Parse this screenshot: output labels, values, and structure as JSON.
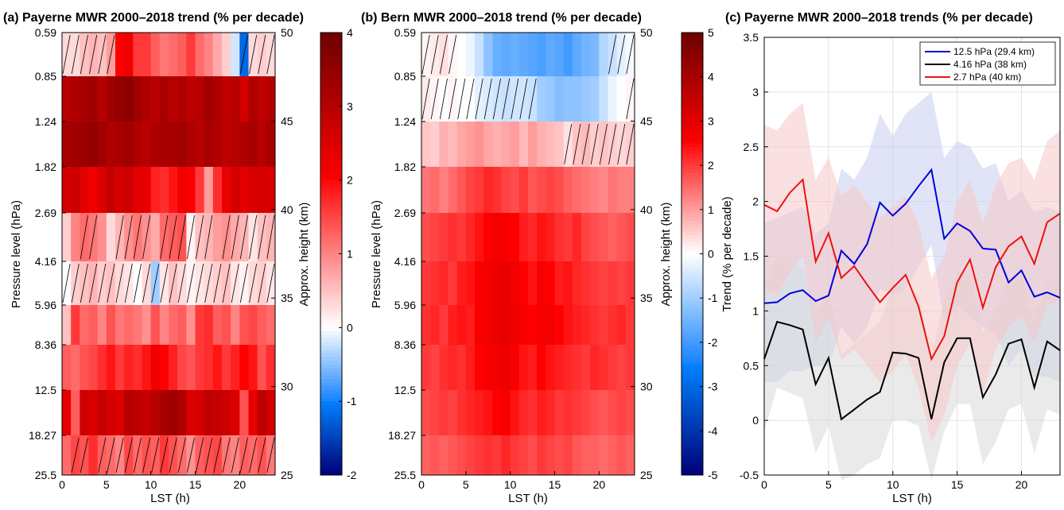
{
  "chart_data": [
    {
      "type": "heatmap",
      "title": "(a) Payerne MWR 2000–2018 trend (% per decade)",
      "xlabel": "LST (h)",
      "ylabel": "Pressure level (hPa)",
      "ylabel_right": "Approx. height (km)",
      "x_range": [
        0,
        24
      ],
      "x_ticks": [
        "0",
        "5",
        "10",
        "15",
        "20"
      ],
      "pressure_levels": [
        "0.59",
        "0.85",
        "1.24",
        "1.82",
        "2.69",
        "4.16",
        "5.96",
        "8.36",
        "12.5",
        "18.27",
        "25.5"
      ],
      "height_range_km": [
        25,
        50
      ],
      "height_ticks": [
        "25",
        "30",
        "35",
        "40",
        "45",
        "50"
      ],
      "colorbar_range": [
        -2,
        4
      ],
      "colorbar_ticks": [
        "-2",
        "-1",
        "0",
        "1",
        "2",
        "3",
        "4"
      ],
      "row_values": [
        [
          0.3,
          0.3,
          0.5,
          0.6,
          0.5,
          0.8,
          2.0,
          2.2,
          1.6,
          1.6,
          1.3,
          1.1,
          1.2,
          1.3,
          1.6,
          1.2,
          1.0,
          0.7,
          0.4,
          -0.2,
          -1.2,
          0.3,
          0.4,
          0.3
        ],
        [
          3.0,
          3.1,
          3.2,
          3.3,
          3.0,
          3.3,
          3.5,
          3.6,
          3.3,
          3.1,
          3.0,
          3.2,
          3.0,
          3.1,
          2.9,
          3.0,
          3.3,
          3.1,
          2.9,
          3.0,
          2.6,
          3.1,
          2.9,
          3.0
        ],
        [
          3.2,
          3.3,
          3.4,
          3.5,
          3.3,
          3.1,
          3.2,
          3.3,
          3.1,
          3.0,
          3.1,
          3.2,
          3.2,
          3.3,
          3.1,
          3.0,
          3.2,
          3.1,
          2.9,
          3.0,
          3.1,
          3.2,
          3.0,
          3.2
        ],
        [
          2.6,
          2.7,
          2.4,
          2.2,
          2.5,
          2.8,
          2.6,
          2.7,
          2.4,
          2.3,
          1.8,
          1.7,
          1.9,
          2.2,
          2.1,
          1.6,
          0.8,
          1.7,
          2.3,
          2.6,
          2.4,
          2.5,
          2.6,
          2.5
        ],
        [
          0.4,
          1.0,
          1.2,
          1.1,
          0.9,
          0.3,
          0.6,
          0.9,
          1.1,
          0.9,
          0.7,
          1.2,
          1.3,
          1.4,
          0.1,
          0.5,
          0.6,
          0.8,
          0.9,
          0.7,
          0.6,
          0.2,
          0.5,
          0.6
        ],
        [
          0.0,
          0.4,
          0.5,
          0.6,
          0.4,
          0.5,
          0.3,
          0.2,
          0.0,
          0.3,
          -0.4,
          0.2,
          0.5,
          0.3,
          0.1,
          0.2,
          0.3,
          0.4,
          0.5,
          0.2,
          0.1,
          0.3,
          0.4,
          0.2
        ],
        [
          0.5,
          1.6,
          1.2,
          1.3,
          1.0,
          1.4,
          1.1,
          1.2,
          1.1,
          0.9,
          1.4,
          1.0,
          1.2,
          1.3,
          0.9,
          1.6,
          1.7,
          1.3,
          1.4,
          1.0,
          1.4,
          1.5,
          1.3,
          1.2
        ],
        [
          1.3,
          1.2,
          1.4,
          1.5,
          1.7,
          1.9,
          1.6,
          1.8,
          1.7,
          1.9,
          2.2,
          2.0,
          1.8,
          1.5,
          1.4,
          1.6,
          1.7,
          1.9,
          1.6,
          1.8,
          2.0,
          1.9,
          1.4,
          1.7
        ],
        [
          2.3,
          1.3,
          2.7,
          2.5,
          2.8,
          2.6,
          2.5,
          3.0,
          2.9,
          2.8,
          3.0,
          3.2,
          3.3,
          3.1,
          2.5,
          2.6,
          2.9,
          2.8,
          2.7,
          2.5,
          1.4,
          2.3,
          2.9,
          2.6
        ],
        [
          1.2,
          1.5,
          1.4,
          1.7,
          1.3,
          1.2,
          1.0,
          1.5,
          1.2,
          1.4,
          1.3,
          1.6,
          1.4,
          1.2,
          0.9,
          1.3,
          1.4,
          1.5,
          1.1,
          1.0,
          1.3,
          1.2,
          1.4,
          1.1
        ]
      ],
      "hatched_cells": [
        [
          0,
          1,
          2,
          3,
          4,
          5,
          20,
          21,
          22,
          23
        ],
        [],
        [],
        [],
        [
          2,
          3,
          6,
          7,
          8,
          9,
          11,
          12,
          13,
          14,
          15,
          16,
          18,
          19,
          20,
          21,
          22,
          23
        ],
        [
          0,
          1,
          2,
          3,
          4,
          5,
          6,
          7,
          8,
          9,
          10,
          11,
          12,
          13,
          14,
          15,
          16,
          17,
          18,
          19,
          20,
          21,
          22,
          23
        ],
        [],
        [],
        [],
        [
          1,
          2,
          4,
          5,
          6,
          7,
          8,
          9,
          10,
          11,
          12,
          13,
          14,
          15,
          16,
          17,
          18,
          19,
          20,
          21,
          22,
          23
        ]
      ]
    },
    {
      "type": "heatmap",
      "title": "(b) Bern MWR 2000–2018 trend (% per decade)",
      "xlabel": "LST (h)",
      "ylabel": "Pressure level (hPa)",
      "ylabel_right": "Approx. height (km)",
      "x_range": [
        0,
        24
      ],
      "x_ticks": [
        "0",
        "5",
        "10",
        "15",
        "20"
      ],
      "pressure_levels": [
        "0.59",
        "0.85",
        "1.24",
        "1.82",
        "2.69",
        "4.16",
        "5.96",
        "8.36",
        "12.5",
        "18.27",
        "25.5"
      ],
      "height_range_km": [
        25,
        50
      ],
      "height_ticks": [
        "25",
        "30",
        "35",
        "40",
        "45",
        "50"
      ],
      "colorbar_range": [
        -5,
        5
      ],
      "colorbar_ticks": [
        "-5",
        "-4",
        "-3",
        "-2",
        "-1",
        "0",
        "1",
        "2",
        "3",
        "4",
        "5"
      ],
      "row_values": [
        [
          0.1,
          0.2,
          0.3,
          0.1,
          0.0,
          -0.2,
          -0.6,
          -1.2,
          -1.6,
          -1.7,
          -1.6,
          -1.7,
          -1.8,
          -1.9,
          -1.7,
          -1.8,
          -2.0,
          -1.7,
          -1.5,
          -1.4,
          -0.8,
          -0.6,
          -0.3,
          -0.1
        ],
        [
          0.2,
          0.1,
          0.0,
          0.1,
          0.0,
          0.0,
          -0.3,
          -0.4,
          -0.5,
          -0.6,
          -0.5,
          -0.5,
          -0.6,
          -1.0,
          -1.1,
          -1.3,
          -1.2,
          -1.2,
          -1.1,
          -1.0,
          -0.6,
          -0.2,
          0.0,
          0.1
        ],
        [
          0.6,
          0.5,
          0.8,
          0.7,
          0.9,
          1.0,
          1.1,
          0.9,
          0.8,
          0.9,
          1.0,
          0.7,
          1.0,
          0.8,
          0.7,
          0.6,
          0.3,
          0.6,
          0.7,
          0.5,
          0.6,
          0.5,
          0.4,
          0.5
        ],
        [
          1.4,
          1.5,
          1.3,
          1.5,
          1.7,
          1.9,
          2.0,
          2.2,
          2.1,
          1.9,
          1.8,
          2.0,
          1.7,
          1.8,
          1.9,
          1.8,
          1.6,
          1.5,
          1.4,
          1.3,
          1.2,
          1.4,
          1.3,
          1.3
        ],
        [
          1.8,
          1.9,
          2.0,
          2.1,
          2.0,
          2.2,
          2.4,
          2.5,
          2.7,
          2.6,
          2.5,
          2.3,
          2.2,
          2.4,
          2.3,
          2.1,
          2.0,
          2.2,
          1.9,
          1.8,
          1.7,
          1.6,
          1.7,
          1.8
        ],
        [
          2.0,
          2.1,
          2.2,
          2.0,
          2.3,
          2.4,
          2.6,
          2.7,
          2.8,
          2.9,
          2.7,
          2.5,
          2.4,
          2.6,
          2.5,
          2.3,
          2.4,
          2.2,
          2.1,
          2.0,
          1.9,
          2.0,
          1.9,
          2.0
        ],
        [
          2.1,
          2.2,
          2.0,
          2.3,
          2.4,
          2.3,
          2.6,
          2.7,
          2.8,
          2.9,
          2.8,
          2.6,
          2.5,
          2.6,
          2.7,
          2.5,
          2.4,
          2.3,
          2.2,
          2.1,
          2.0,
          2.1,
          2.2,
          2.0
        ],
        [
          2.0,
          1.9,
          2.1,
          2.2,
          2.1,
          2.3,
          2.5,
          2.6,
          2.7,
          2.8,
          2.6,
          2.4,
          2.3,
          2.5,
          2.4,
          2.3,
          2.2,
          2.1,
          2.0,
          2.2,
          2.1,
          2.0,
          1.9,
          2.0
        ],
        [
          1.8,
          1.9,
          2.0,
          1.9,
          2.1,
          2.2,
          2.3,
          2.4,
          2.5,
          2.6,
          2.4,
          2.2,
          2.1,
          2.3,
          2.2,
          2.0,
          2.1,
          2.0,
          1.9,
          1.8,
          1.7,
          1.8,
          1.9,
          1.8
        ],
        [
          1.6,
          1.7,
          1.6,
          1.7,
          1.8,
          1.9,
          2.0,
          2.1,
          2.0,
          2.2,
          2.0,
          1.9,
          1.8,
          2.0,
          1.9,
          1.8,
          1.9,
          1.7,
          1.6,
          1.6,
          1.5,
          1.6,
          1.7,
          1.6
        ]
      ],
      "hatched_cells": [
        [
          0,
          1,
          2,
          3,
          21,
          22,
          23
        ],
        [
          0,
          1,
          2,
          3,
          4,
          5,
          6,
          7,
          8,
          9,
          10,
          11,
          12,
          23
        ],
        [
          16,
          17,
          18,
          19,
          20,
          21,
          22,
          23
        ],
        [],
        [],
        [],
        [],
        [],
        [],
        []
      ]
    },
    {
      "type": "line",
      "title": "(c) Payerne MWR 2000–2018 trends (% per decade)",
      "xlabel": "LST (h)",
      "ylabel": "Trend (% per decade)",
      "xlim": [
        0,
        23
      ],
      "ylim": [
        -0.5,
        3.5
      ],
      "x_ticks": [
        "0",
        "5",
        "10",
        "15",
        "20"
      ],
      "y_ticks": [
        "-0.5",
        "0",
        "0.5",
        "1",
        "1.5",
        "2",
        "2.5",
        "3",
        "3.5"
      ],
      "grid": true,
      "legend_position": "top-right",
      "x": [
        0,
        1,
        2,
        3,
        4,
        5,
        6,
        7,
        8,
        9,
        10,
        11,
        12,
        13,
        14,
        15,
        16,
        17,
        18,
        19,
        20,
        21,
        22,
        23
      ],
      "series": [
        {
          "name": "12.5 hPa (29.4 km)",
          "color": "#0000dd",
          "band_color": "#c8cdf0",
          "values": [
            1.07,
            1.08,
            1.16,
            1.19,
            1.09,
            1.14,
            1.55,
            1.43,
            1.61,
            1.99,
            1.87,
            1.98,
            2.14,
            2.29,
            1.66,
            1.8,
            1.73,
            1.57,
            1.56,
            1.26,
            1.37,
            1.13,
            1.17,
            1.12
          ],
          "upper": [
            1.8,
            1.85,
            1.9,
            1.95,
            1.7,
            1.8,
            2.3,
            2.2,
            2.4,
            2.8,
            2.6,
            2.8,
            2.9,
            3.0,
            2.4,
            2.55,
            2.5,
            2.3,
            2.35,
            2.0,
            2.1,
            1.9,
            1.95,
            1.9
          ],
          "lower": [
            0.35,
            0.35,
            0.45,
            0.45,
            0.5,
            0.5,
            0.85,
            0.7,
            0.85,
            1.2,
            1.15,
            1.2,
            1.4,
            1.6,
            0.9,
            1.05,
            0.95,
            0.85,
            0.8,
            0.5,
            0.65,
            0.4,
            0.4,
            0.35
          ]
        },
        {
          "name": "4.16 hPa (38 km)",
          "color": "#000000",
          "band_color": "#d8d8d8",
          "values": [
            0.56,
            0.9,
            0.87,
            0.83,
            0.33,
            0.57,
            0.01,
            0.1,
            0.19,
            0.26,
            0.62,
            0.61,
            0.57,
            0.01,
            0.53,
            0.75,
            0.75,
            0.21,
            0.42,
            0.7,
            0.74,
            0.3,
            0.72,
            0.64
          ],
          "upper": [
            1.2,
            1.5,
            1.45,
            1.4,
            0.95,
            1.2,
            0.6,
            0.7,
            0.8,
            0.9,
            1.25,
            1.2,
            1.15,
            0.6,
            1.1,
            1.35,
            1.35,
            0.8,
            1.0,
            1.3,
            1.35,
            0.9,
            1.3,
            1.25
          ],
          "lower": [
            -0.1,
            0.3,
            0.25,
            0.2,
            -0.3,
            -0.05,
            -0.55,
            -0.5,
            -0.4,
            -0.35,
            0.0,
            0.0,
            -0.05,
            -0.55,
            -0.1,
            0.15,
            0.15,
            -0.4,
            -0.2,
            0.1,
            0.15,
            -0.3,
            0.1,
            0.05
          ]
        },
        {
          "name": "2.7 hPa (40 km)",
          "color": "#ee1111",
          "band_color": "#f6c6c8",
          "values": [
            1.97,
            1.91,
            2.08,
            2.2,
            1.45,
            1.71,
            1.3,
            1.41,
            1.24,
            1.08,
            1.21,
            1.33,
            1.04,
            0.56,
            0.77,
            1.26,
            1.47,
            1.03,
            1.4,
            1.59,
            1.68,
            1.43,
            1.81,
            1.89
          ],
          "upper": [
            2.7,
            2.65,
            2.8,
            2.9,
            2.2,
            2.4,
            2.05,
            2.15,
            2.0,
            1.85,
            1.95,
            2.05,
            1.8,
            1.3,
            1.5,
            2.0,
            2.2,
            1.8,
            2.15,
            2.35,
            2.4,
            2.2,
            2.55,
            2.65
          ],
          "lower": [
            1.2,
            1.15,
            1.35,
            1.5,
            0.7,
            0.95,
            0.55,
            0.65,
            0.5,
            0.35,
            0.45,
            0.6,
            0.3,
            -0.2,
            0.05,
            0.5,
            0.7,
            0.25,
            0.65,
            0.85,
            0.95,
            0.7,
            1.05,
            1.1
          ]
        }
      ]
    }
  ]
}
